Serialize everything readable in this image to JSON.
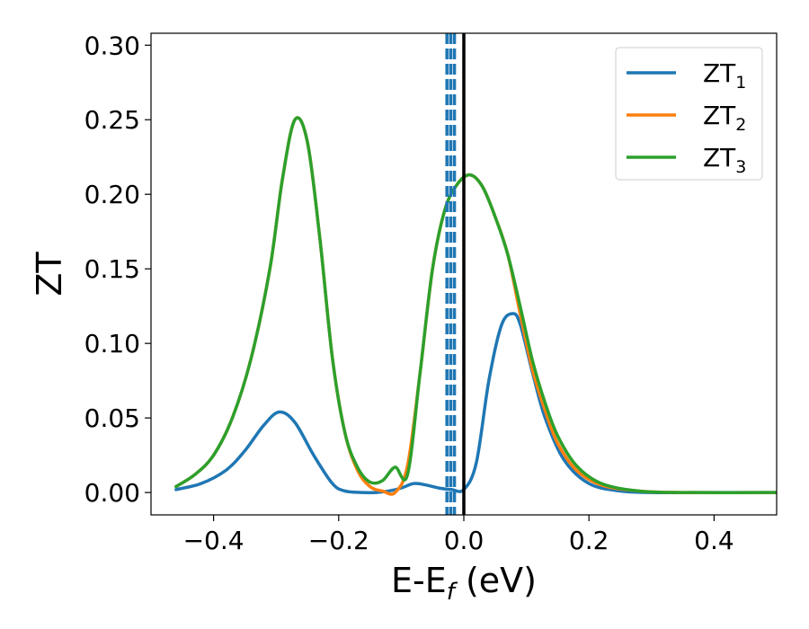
{
  "chart_data": {
    "type": "line",
    "xlabel": "E-E",
    "xlabel_sub": "f",
    "xlabel_unit": " (eV)",
    "ylabel": "ZT",
    "xlim": [
      -0.5,
      0.5
    ],
    "ylim": [
      -0.015,
      0.308
    ],
    "xticks": [
      -0.4,
      -0.2,
      0.0,
      0.2,
      0.4
    ],
    "xtick_labels": [
      "−0.4",
      "−0.2",
      "0.0",
      "0.2",
      "0.4"
    ],
    "yticks": [
      0.0,
      0.05,
      0.1,
      0.15,
      0.2,
      0.25,
      0.3
    ],
    "ytick_labels": [
      "0.00",
      "0.05",
      "0.10",
      "0.15",
      "0.20",
      "0.25",
      "0.30"
    ],
    "grid": false,
    "legend_position": "top-right",
    "vline_solid": {
      "x": 0.0,
      "color": "#000000"
    },
    "vlines_dashed": {
      "x": [
        -0.027,
        -0.021,
        -0.015
      ],
      "color": "#1f77b4"
    },
    "series": [
      {
        "name": "ZT",
        "name_sub": "1",
        "color": "#1f77b4",
        "x": [
          -0.46,
          -0.42,
          -0.38,
          -0.35,
          -0.32,
          -0.295,
          -0.27,
          -0.24,
          -0.21,
          -0.19,
          -0.16,
          -0.14,
          -0.12,
          -0.1,
          -0.08,
          -0.06,
          -0.04,
          -0.02,
          0.0,
          0.02,
          0.04,
          0.06,
          0.078,
          0.09,
          0.11,
          0.13,
          0.16,
          0.2,
          0.25,
          0.3,
          0.4,
          0.5
        ],
        "y": [
          0.002,
          0.006,
          0.015,
          0.028,
          0.045,
          0.054,
          0.047,
          0.025,
          0.006,
          0.001,
          0.0,
          0.0,
          0.001,
          0.003,
          0.006,
          0.005,
          0.003,
          0.002,
          0.002,
          0.02,
          0.075,
          0.112,
          0.12,
          0.113,
          0.08,
          0.05,
          0.022,
          0.006,
          0.001,
          0.0,
          0.0,
          0.0
        ]
      },
      {
        "name": "ZT",
        "name_sub": "2",
        "color": "#ff7f0e",
        "x": [
          -0.46,
          -0.43,
          -0.4,
          -0.37,
          -0.34,
          -0.31,
          -0.29,
          -0.27,
          -0.25,
          -0.23,
          -0.21,
          -0.19,
          -0.17,
          -0.15,
          -0.13,
          -0.11,
          -0.09,
          -0.07,
          -0.05,
          -0.03,
          -0.01,
          0.01,
          0.03,
          0.05,
          0.07,
          0.09,
          0.11,
          0.13,
          0.15,
          0.18,
          0.22,
          0.28,
          0.35,
          0.5
        ],
        "y": [
          0.004,
          0.012,
          0.025,
          0.05,
          0.09,
          0.15,
          0.21,
          0.25,
          0.235,
          0.17,
          0.09,
          0.04,
          0.015,
          0.004,
          0.001,
          0.0,
          0.018,
          0.08,
          0.15,
          0.19,
          0.207,
          0.213,
          0.205,
          0.185,
          0.16,
          0.12,
          0.082,
          0.055,
          0.033,
          0.015,
          0.005,
          0.001,
          0.0,
          0.0
        ]
      },
      {
        "name": "ZT",
        "name_sub": "3",
        "color": "#2ca02c",
        "x": [
          -0.46,
          -0.43,
          -0.4,
          -0.37,
          -0.34,
          -0.31,
          -0.29,
          -0.27,
          -0.25,
          -0.23,
          -0.21,
          -0.19,
          -0.17,
          -0.15,
          -0.13,
          -0.11,
          -0.09,
          -0.07,
          -0.05,
          -0.03,
          -0.01,
          0.01,
          0.03,
          0.05,
          0.07,
          0.09,
          0.11,
          0.13,
          0.15,
          0.18,
          0.22,
          0.28,
          0.35,
          0.5
        ],
        "y": [
          0.004,
          0.012,
          0.025,
          0.05,
          0.09,
          0.15,
          0.21,
          0.25,
          0.235,
          0.17,
          0.09,
          0.04,
          0.017,
          0.007,
          0.008,
          0.017,
          0.012,
          0.08,
          0.15,
          0.19,
          0.207,
          0.213,
          0.205,
          0.185,
          0.16,
          0.125,
          0.088,
          0.06,
          0.038,
          0.018,
          0.006,
          0.001,
          0.0,
          0.0
        ]
      }
    ]
  }
}
